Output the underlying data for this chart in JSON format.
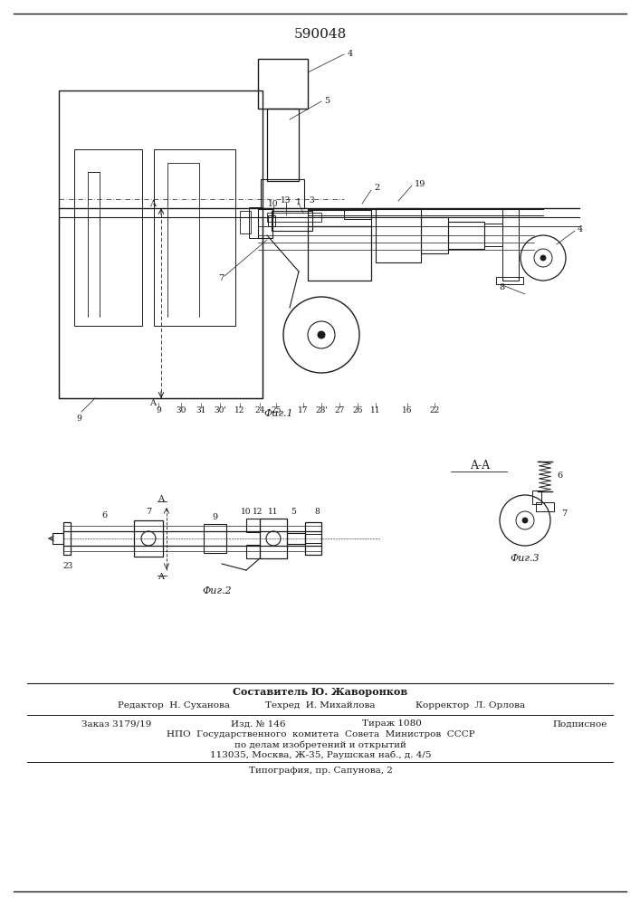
{
  "patent_number": "590048",
  "bg_color": "#ffffff",
  "line_color": "#1a1a1a",
  "footer": {
    "compiler": "Составитель Ю. Жаворонков",
    "editor": "Редактор  Н. Суханова",
    "tech": "Техред  И. Михайлова",
    "corrector": "Корректор  Л. Орлова",
    "order": "Заказ 3179/19",
    "izd": "Изд. № 146",
    "tirazh": "Тираж 1080",
    "podpisnoe": "Подписное",
    "npo1": "НПО  Государственного  комитета  Совета  Министров  СССР",
    "npo2": "по делам изобретений и открытий",
    "npo3": "113035, Москва, Ж-35, Раушская наб., д. 4/5",
    "typography": "Типография, пр. Сапунова, 2"
  },
  "fig1_caption": "Фиг.1",
  "fig2_caption": "Фиг.2",
  "fig3_caption": "Фиг.3",
  "aa_label": "A-A"
}
